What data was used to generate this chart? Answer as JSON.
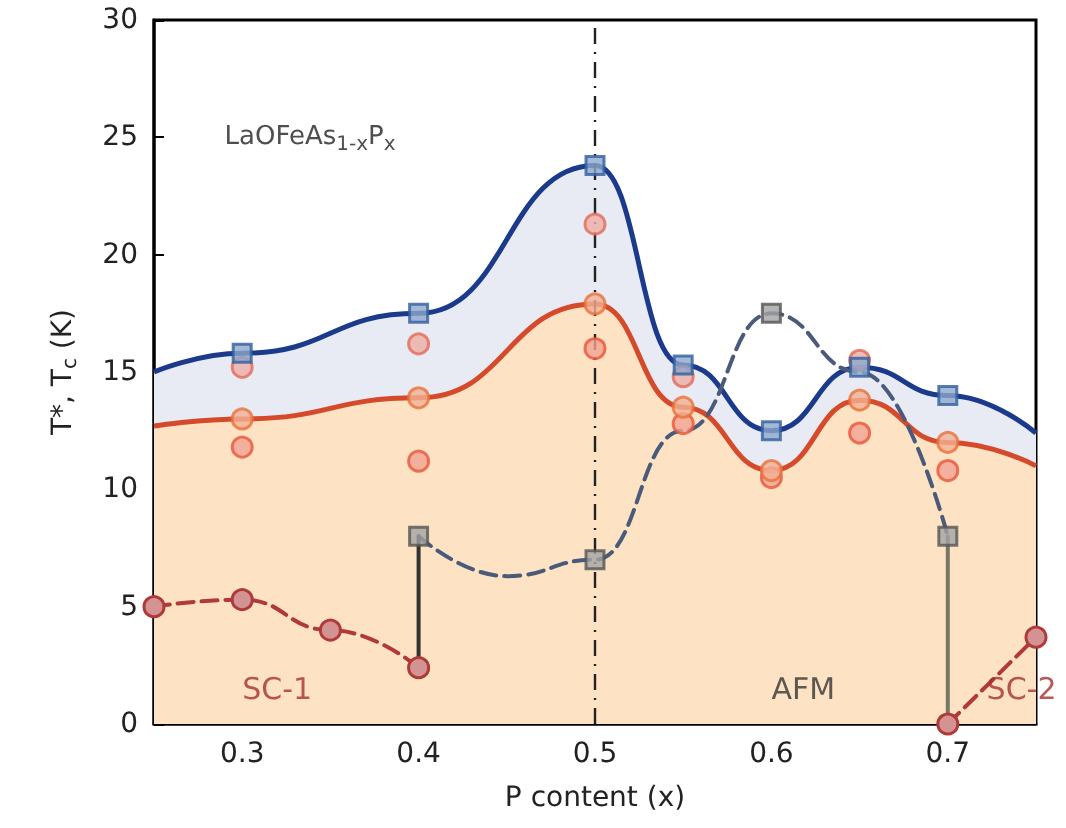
{
  "chart_data": {
    "type": "line",
    "xlabel": "P content (x)",
    "ylabel": "T*, T$_{c}$ (K)",
    "xlim": [
      0.25,
      0.75
    ],
    "xticks": [
      0.3,
      0.4,
      0.5,
      0.6,
      0.7
    ],
    "ylim": [
      0,
      30
    ],
    "yticks": [
      0,
      5,
      10,
      15,
      20,
      25,
      30
    ],
    "grid": false,
    "series": [
      {
        "type": "area",
        "color": "#1b3a8c",
        "marker": "none",
        "x": [
          0.25,
          0.3,
          0.4,
          0.5,
          0.55,
          0.6,
          0.65,
          0.7,
          0.75
        ],
        "values": [
          15.0,
          15.8,
          17.5,
          23.8,
          15.3,
          12.5,
          15.2,
          14.0,
          12.4
        ]
      },
      {
        "type": "area",
        "color": "#d44a2a",
        "marker": "none",
        "x": [
          0.25,
          0.3,
          0.4,
          0.5,
          0.55,
          0.6,
          0.65,
          0.7,
          0.75
        ],
        "values": [
          12.7,
          13.0,
          13.9,
          17.9,
          13.5,
          10.8,
          13.8,
          12.0,
          11.0
        ]
      },
      {
        "color": "#4a5a7a",
        "marker": "none",
        "line_style": "dashed",
        "x": [
          0.4,
          0.45,
          0.5,
          0.55,
          0.6,
          0.65,
          0.7
        ],
        "values": [
          8.0,
          6.3,
          7.0,
          12.5,
          17.5,
          15.0,
          8.0
        ]
      },
      {
        "color": "#333333",
        "marker": "none",
        "line_style": "solid",
        "x": [
          0.4,
          0.4
        ],
        "values": [
          2.4,
          8.0
        ]
      },
      {
        "color": "#777766",
        "marker": "none",
        "line_style": "solid",
        "x": [
          0.7,
          0.7
        ],
        "values": [
          0.0,
          8.0
        ]
      },
      {
        "color": "#b03a3a",
        "marker": "circle",
        "line_style": "dashed",
        "x": [
          0.25,
          0.3,
          0.35,
          0.4
        ],
        "values": [
          5.0,
          5.3,
          4.0,
          2.4
        ]
      },
      {
        "color": "#b03a3a",
        "marker": "circle",
        "line_style": "dashed",
        "x": [
          0.7,
          0.75
        ],
        "values": [
          0.0,
          3.7
        ]
      },
      {
        "type": "scatter",
        "color": "#e06a5a",
        "marker": "circle",
        "x": [
          0.3,
          0.4,
          0.5,
          0.55,
          0.65
        ],
        "values": [
          15.2,
          16.2,
          21.3,
          14.8,
          15.5
        ]
      },
      {
        "type": "scatter",
        "color": "#e8553a",
        "marker": "circle",
        "x": [
          0.3,
          0.4,
          0.5,
          0.55,
          0.6,
          0.65,
          0.7
        ],
        "values": [
          11.8,
          11.2,
          16.0,
          12.8,
          10.5,
          12.4,
          10.8
        ]
      },
      {
        "type": "scatter",
        "color": "#e8703a",
        "marker": "circle",
        "x": [
          0.3,
          0.4,
          0.5,
          0.55,
          0.6,
          0.65,
          0.7
        ],
        "values": [
          13.0,
          13.9,
          17.9,
          13.5,
          10.8,
          13.8,
          12.0
        ]
      },
      {
        "type": "scatter",
        "color": "#555555",
        "marker": "square",
        "x": [
          0.4,
          0.5,
          0.6,
          0.7
        ],
        "values": [
          8.0,
          7.0,
          17.5,
          8.0
        ]
      },
      {
        "type": "scatter",
        "color": "#2f5f9f",
        "marker": "square",
        "x": [
          0.3,
          0.4,
          0.5,
          0.55,
          0.6,
          0.65,
          0.7
        ],
        "values": [
          15.8,
          17.5,
          23.8,
          15.3,
          12.5,
          15.2,
          14.0
        ]
      }
    ],
    "ref_lines": [
      {
        "axis": "x",
        "value": 0.5,
        "line_style": "dashed",
        "color": "#222222"
      }
    ],
    "annotations": [
      "LaOFeAs$_{1-x}$P$_{x}$",
      "SC-1",
      "AFM",
      "SC-2"
    ]
  }
}
